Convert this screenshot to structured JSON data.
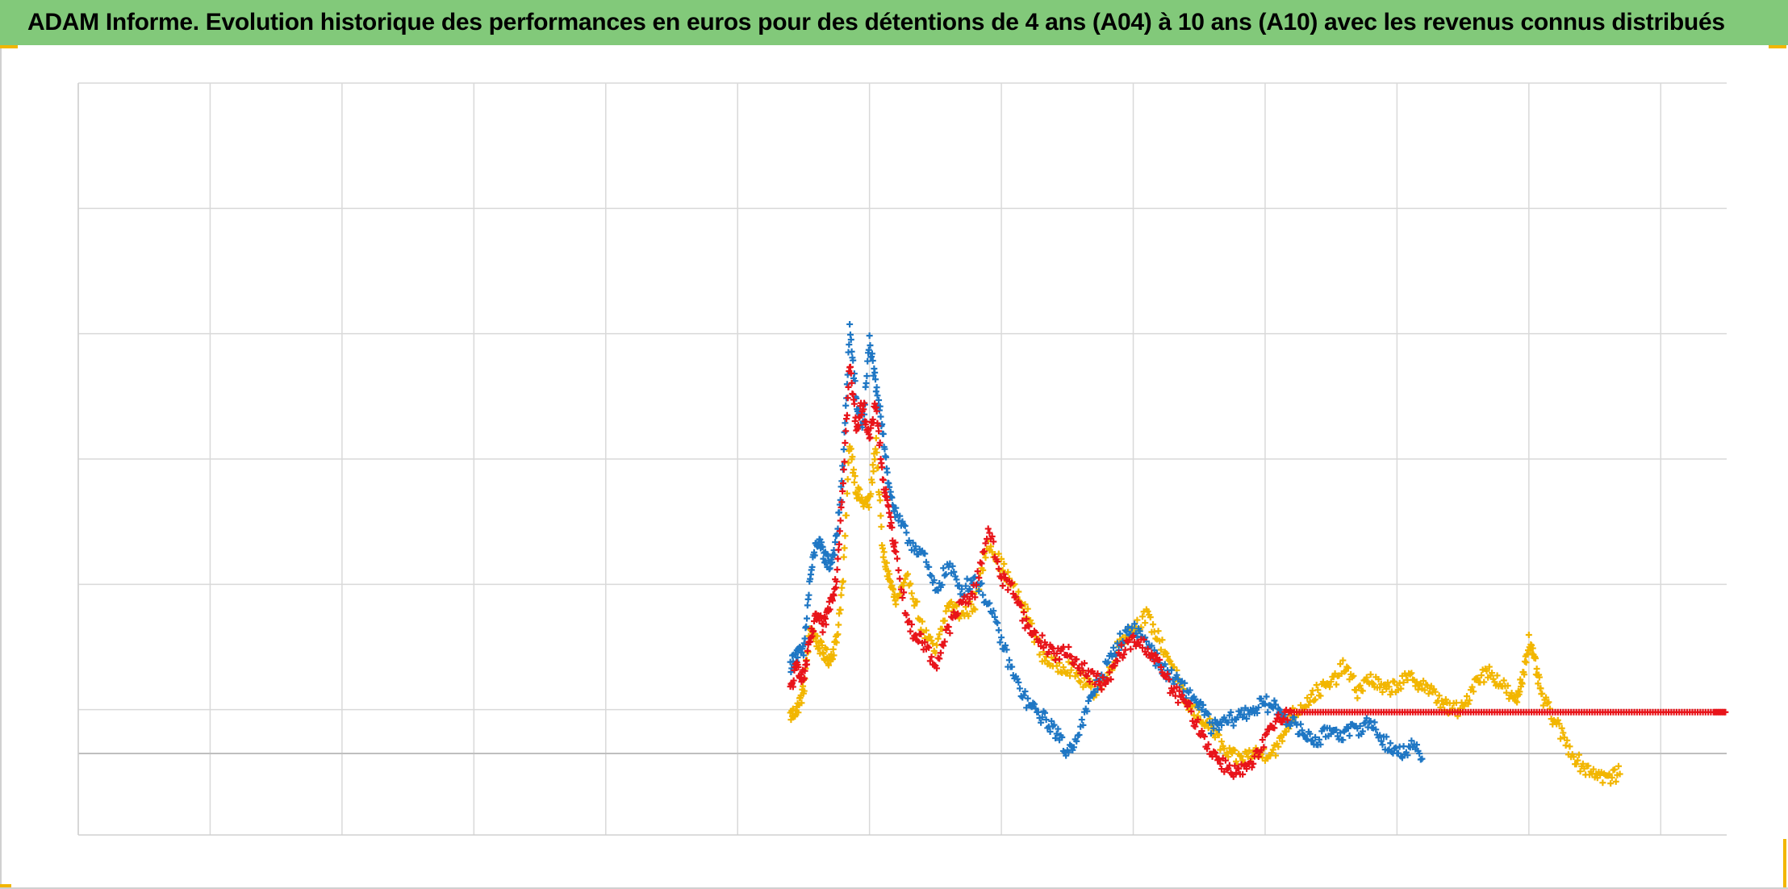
{
  "header": {
    "title": "ADAM Informe. Evolution historique des performances en euros pour des détentions de 4 ans (A04) à 10 ans (A10) avec les revenus connus distribués"
  },
  "chart_data": {
    "type": "scatter",
    "title": "ADAM Informe. Evolution historique des performances en euros pour des détentions de 4 ans (A04) à 10 ans (A10) avec les revenus connus distribués",
    "xlabel": "",
    "ylabel": "",
    "x_gridlines": 13,
    "y_gridlines": 6,
    "xlim": [
      0,
      12.5
    ],
    "ylim": [
      -0.65,
      5.35
    ],
    "reference_line_y": 0,
    "grid": true,
    "legend": "none",
    "marker": "plus",
    "series": [
      {
        "color": "#f2b600",
        "points": [
          [
            5.4,
            0.3
          ],
          [
            5.45,
            0.35
          ],
          [
            5.5,
            0.5
          ],
          [
            5.55,
            1.0
          ],
          [
            5.6,
            0.9
          ],
          [
            5.65,
            0.8
          ],
          [
            5.7,
            0.75
          ],
          [
            5.75,
            0.9
          ],
          [
            5.8,
            1.4
          ],
          [
            5.85,
            2.5
          ],
          [
            5.9,
            2.1
          ],
          [
            5.95,
            2.0
          ],
          [
            6.0,
            2.0
          ],
          [
            6.05,
            2.5
          ],
          [
            6.1,
            1.6
          ],
          [
            6.15,
            1.4
          ],
          [
            6.2,
            1.2
          ],
          [
            6.3,
            1.4
          ],
          [
            6.4,
            1.0
          ],
          [
            6.5,
            0.8
          ],
          [
            6.6,
            1.2
          ],
          [
            6.7,
            1.1
          ],
          [
            6.8,
            1.2
          ],
          [
            6.9,
            1.7
          ],
          [
            7.0,
            1.5
          ],
          [
            7.1,
            1.3
          ],
          [
            7.2,
            1.1
          ],
          [
            7.3,
            0.8
          ],
          [
            7.4,
            0.7
          ],
          [
            7.5,
            0.7
          ],
          [
            7.6,
            0.6
          ],
          [
            7.7,
            0.5
          ],
          [
            7.8,
            0.6
          ],
          [
            7.9,
            0.9
          ],
          [
            8.0,
            1.0
          ],
          [
            8.1,
            1.1
          ],
          [
            8.2,
            0.9
          ],
          [
            8.3,
            0.7
          ],
          [
            8.4,
            0.4
          ],
          [
            8.5,
            0.3
          ],
          [
            8.6,
            0.2
          ],
          [
            8.7,
            0.0
          ],
          [
            8.8,
            -0.05
          ],
          [
            8.9,
            0.0
          ],
          [
            9.0,
            0.0
          ],
          [
            9.1,
            0.05
          ],
          [
            9.2,
            0.3
          ],
          [
            9.3,
            0.4
          ],
          [
            9.4,
            0.5
          ],
          [
            9.5,
            0.55
          ],
          [
            9.6,
            0.7
          ],
          [
            9.7,
            0.5
          ],
          [
            9.8,
            0.6
          ],
          [
            9.9,
            0.5
          ],
          [
            10.0,
            0.55
          ],
          [
            10.1,
            0.6
          ],
          [
            10.2,
            0.55
          ],
          [
            10.3,
            0.45
          ],
          [
            10.4,
            0.35
          ],
          [
            10.5,
            0.35
          ],
          [
            10.6,
            0.6
          ],
          [
            10.7,
            0.65
          ],
          [
            10.8,
            0.55
          ],
          [
            10.9,
            0.4
          ],
          [
            10.95,
            0.6
          ],
          [
            11.0,
            0.9
          ],
          [
            11.05,
            0.7
          ],
          [
            11.1,
            0.45
          ],
          [
            11.2,
            0.25
          ],
          [
            11.3,
            0.05
          ],
          [
            11.4,
            -0.1
          ],
          [
            11.5,
            -0.15
          ],
          [
            11.6,
            -0.2
          ],
          [
            11.7,
            -0.15
          ]
        ]
      },
      {
        "color": "#1f77c4",
        "points": [
          [
            5.4,
            0.7
          ],
          [
            5.45,
            0.8
          ],
          [
            5.5,
            0.8
          ],
          [
            5.55,
            1.4
          ],
          [
            5.6,
            1.7
          ],
          [
            5.65,
            1.6
          ],
          [
            5.7,
            1.5
          ],
          [
            5.75,
            1.7
          ],
          [
            5.8,
            2.3
          ],
          [
            5.85,
            3.4
          ],
          [
            5.9,
            2.8
          ],
          [
            5.95,
            2.6
          ],
          [
            6.0,
            3.3
          ],
          [
            6.05,
            2.9
          ],
          [
            6.1,
            2.6
          ],
          [
            6.15,
            2.1
          ],
          [
            6.2,
            1.9
          ],
          [
            6.3,
            1.7
          ],
          [
            6.4,
            1.6
          ],
          [
            6.5,
            1.3
          ],
          [
            6.6,
            1.5
          ],
          [
            6.7,
            1.3
          ],
          [
            6.8,
            1.4
          ],
          [
            6.9,
            1.2
          ],
          [
            7.0,
            0.9
          ],
          [
            7.1,
            0.6
          ],
          [
            7.2,
            0.4
          ],
          [
            7.3,
            0.3
          ],
          [
            7.4,
            0.2
          ],
          [
            7.5,
            0.0
          ],
          [
            7.6,
            0.2
          ],
          [
            7.7,
            0.5
          ],
          [
            7.8,
            0.7
          ],
          [
            7.9,
            0.9
          ],
          [
            8.0,
            1.0
          ],
          [
            8.1,
            0.9
          ],
          [
            8.2,
            0.7
          ],
          [
            8.3,
            0.6
          ],
          [
            8.4,
            0.5
          ],
          [
            8.5,
            0.4
          ],
          [
            8.6,
            0.2
          ],
          [
            8.7,
            0.25
          ],
          [
            8.8,
            0.3
          ],
          [
            8.9,
            0.35
          ],
          [
            9.0,
            0.4
          ],
          [
            9.1,
            0.35
          ],
          [
            9.2,
            0.25
          ],
          [
            9.3,
            0.15
          ],
          [
            9.4,
            0.1
          ],
          [
            9.5,
            0.2
          ],
          [
            9.6,
            0.15
          ],
          [
            9.7,
            0.2
          ],
          [
            9.8,
            0.25
          ],
          [
            9.9,
            0.1
          ],
          [
            10.0,
            0.0
          ],
          [
            10.1,
            0.05
          ],
          [
            10.2,
            -0.02
          ]
        ]
      },
      {
        "color": "#e8141a",
        "points": [
          [
            5.4,
            0.5
          ],
          [
            5.45,
            0.7
          ],
          [
            5.5,
            0.6
          ],
          [
            5.55,
            0.9
          ],
          [
            5.6,
            1.1
          ],
          [
            5.65,
            1.0
          ],
          [
            5.7,
            1.2
          ],
          [
            5.75,
            1.4
          ],
          [
            5.8,
            2.2
          ],
          [
            5.85,
            3.1
          ],
          [
            5.9,
            2.6
          ],
          [
            5.95,
            2.8
          ],
          [
            6.0,
            2.5
          ],
          [
            6.05,
            2.8
          ],
          [
            6.1,
            2.2
          ],
          [
            6.15,
            1.9
          ],
          [
            6.2,
            1.6
          ],
          [
            6.3,
            1.0
          ],
          [
            6.4,
            0.9
          ],
          [
            6.5,
            0.7
          ],
          [
            6.6,
            1.0
          ],
          [
            6.7,
            1.2
          ],
          [
            6.8,
            1.3
          ],
          [
            6.9,
            1.8
          ],
          [
            7.0,
            1.4
          ],
          [
            7.1,
            1.3
          ],
          [
            7.2,
            1.0
          ],
          [
            7.3,
            0.9
          ],
          [
            7.4,
            0.8
          ],
          [
            7.5,
            0.8
          ],
          [
            7.6,
            0.7
          ],
          [
            7.7,
            0.6
          ],
          [
            7.8,
            0.55
          ],
          [
            7.9,
            0.8
          ],
          [
            8.0,
            0.9
          ],
          [
            8.1,
            0.85
          ],
          [
            8.2,
            0.7
          ],
          [
            8.3,
            0.5
          ],
          [
            8.4,
            0.4
          ],
          [
            8.5,
            0.2
          ],
          [
            8.6,
            0.0
          ],
          [
            8.7,
            -0.1
          ],
          [
            8.8,
            -0.15
          ],
          [
            8.9,
            -0.1
          ],
          [
            9.0,
            0.1
          ],
          [
            9.1,
            0.3
          ],
          [
            9.2,
            0.33
          ],
          [
            9.4,
            0.33
          ],
          [
            9.6,
            0.33
          ],
          [
            9.8,
            0.33
          ],
          [
            10.0,
            0.33
          ],
          [
            10.2,
            0.33
          ],
          [
            10.4,
            0.33
          ],
          [
            10.6,
            0.33
          ],
          [
            10.8,
            0.33
          ],
          [
            11.0,
            0.33
          ],
          [
            11.2,
            0.33
          ],
          [
            11.4,
            0.33
          ],
          [
            11.6,
            0.33
          ],
          [
            11.8,
            0.33
          ],
          [
            12.0,
            0.33
          ],
          [
            12.2,
            0.33
          ],
          [
            12.4,
            0.33
          ],
          [
            12.5,
            0.33
          ]
        ]
      }
    ]
  }
}
